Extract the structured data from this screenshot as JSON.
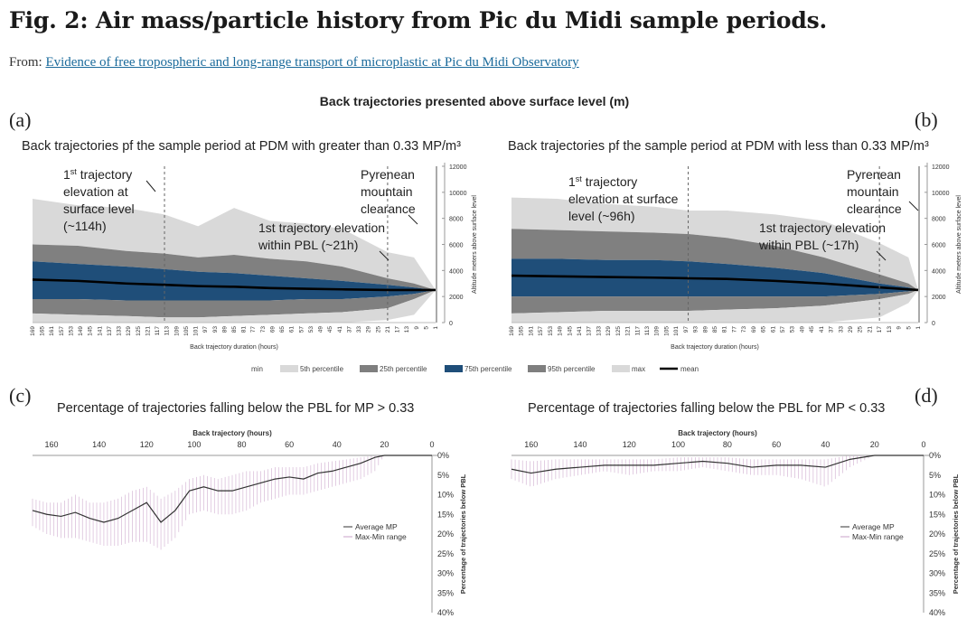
{
  "figure": {
    "title": "Fig. 2: Air mass/particle history from Pic du Midi sample periods.",
    "from_label": "From:",
    "link_text": "Evidence of free tropospheric and long-range transport of microplastic at Pic du Midi Observatory",
    "supertitle": "Back trajectories presented above surface level (m)",
    "panel_labels": [
      "(a)",
      "(b)",
      "(c)",
      "(d)"
    ]
  },
  "legend_top": {
    "items": [
      {
        "label": "min",
        "color": "#ffffff"
      },
      {
        "label": "5th percentile",
        "color": "#d9d9d9"
      },
      {
        "label": "25th percentile",
        "color": "#7f7f7f"
      },
      {
        "label": "75th percentile",
        "color": "#1f4e79"
      },
      {
        "label": "95th percentile",
        "color": "#7f7f7f"
      },
      {
        "label": "max",
        "color": "#d9d9d9"
      },
      {
        "label": "mean",
        "color": "#000000"
      }
    ]
  },
  "chart_data": [
    {
      "panel": "a",
      "type": "area",
      "title": "Back trajectories pf the sample period at PDM with greater than 0.33 MP/m³",
      "xlabel": "Back trajectory duration (hours)",
      "ylabel": "Altitude meters above surface level",
      "ylim": [
        0,
        12000
      ],
      "yticks": [
        0,
        2000,
        4000,
        6000,
        8000,
        10000,
        12000
      ],
      "xticks": [
        "169",
        "165",
        "161",
        "157",
        "153",
        "149",
        "145",
        "141",
        "137",
        "133",
        "129",
        "125",
        "121",
        "117",
        "113",
        "109",
        "105",
        "101",
        "97",
        "93",
        "89",
        "85",
        "81",
        "77",
        "73",
        "69",
        "65",
        "61",
        "57",
        "53",
        "49",
        "45",
        "41",
        "37",
        "33",
        "29",
        "25",
        "21",
        "17",
        "13",
        "9",
        "5",
        "1"
      ],
      "x": [
        169,
        150,
        130,
        114,
        100,
        85,
        70,
        55,
        40,
        21,
        10,
        1
      ],
      "series": [
        {
          "name": "max",
          "values": [
            9500,
            9000,
            8800,
            8300,
            7400,
            8800,
            7800,
            7600,
            7200,
            5400,
            5000,
            2500
          ]
        },
        {
          "name": "95th percentile",
          "values": [
            6000,
            5900,
            5500,
            5300,
            5000,
            5200,
            4900,
            4700,
            4300,
            3400,
            3000,
            2500
          ]
        },
        {
          "name": "75th percentile",
          "values": [
            4700,
            4500,
            4300,
            4100,
            3900,
            3800,
            3600,
            3400,
            3200,
            2900,
            2700,
            2500
          ]
        },
        {
          "name": "mean",
          "values": [
            3300,
            3200,
            3000,
            2900,
            2800,
            2750,
            2650,
            2600,
            2550,
            2500,
            2500,
            2500
          ]
        },
        {
          "name": "25th percentile",
          "values": [
            1800,
            1800,
            1700,
            1700,
            1700,
            1700,
            1700,
            1800,
            1800,
            2000,
            2200,
            2500
          ]
        },
        {
          "name": "5th percentile",
          "values": [
            700,
            600,
            500,
            400,
            400,
            500,
            600,
            700,
            800,
            1100,
            1800,
            2500
          ]
        },
        {
          "name": "min",
          "values": [
            0,
            0,
            0,
            0,
            0,
            0,
            0,
            0,
            0,
            200,
            600,
            2500
          ]
        }
      ],
      "annotations": [
        {
          "sup": "st",
          "lines": [
            "1",
            "trajectory",
            "elevation at",
            "surface level",
            "(~114h)"
          ],
          "x": 114
        },
        {
          "lines": [
            "1st trajectory elevation",
            "within PBL (~21h)"
          ],
          "x": 21
        },
        {
          "lines": [
            "Pyrenean",
            "mountain",
            "clearance"
          ],
          "x": 1
        }
      ]
    },
    {
      "panel": "b",
      "type": "area",
      "title": "Back trajectories pf the sample period at PDM with less than 0.33 MP/m³",
      "xlabel": "Back trajectory duration (hours)",
      "ylabel": "Altitude meters above surface level",
      "ylim": [
        0,
        12000
      ],
      "yticks": [
        0,
        2000,
        4000,
        6000,
        8000,
        10000,
        12000
      ],
      "xticks": [
        "169",
        "165",
        "161",
        "157",
        "153",
        "149",
        "145",
        "141",
        "137",
        "133",
        "129",
        "125",
        "121",
        "117",
        "113",
        "109",
        "105",
        "101",
        "97",
        "93",
        "89",
        "85",
        "81",
        "77",
        "73",
        "69",
        "65",
        "61",
        "57",
        "53",
        "49",
        "45",
        "41",
        "37",
        "33",
        "29",
        "25",
        "21",
        "17",
        "13",
        "9",
        "5",
        "1"
      ],
      "x": [
        169,
        150,
        130,
        110,
        96,
        80,
        60,
        40,
        17,
        5,
        1
      ],
      "series": [
        {
          "name": "max",
          "values": [
            9600,
            9500,
            9100,
            8900,
            8600,
            8600,
            8300,
            7800,
            6100,
            5000,
            2500
          ]
        },
        {
          "name": "95th percentile",
          "values": [
            7200,
            7100,
            7000,
            6900,
            6800,
            6500,
            5900,
            5000,
            3700,
            3000,
            2500
          ]
        },
        {
          "name": "75th percentile",
          "values": [
            4900,
            4900,
            4800,
            4800,
            4700,
            4500,
            4200,
            3800,
            3000,
            2700,
            2500
          ]
        },
        {
          "name": "mean",
          "values": [
            3600,
            3550,
            3500,
            3450,
            3400,
            3350,
            3200,
            3000,
            2700,
            2550,
            2500
          ]
        },
        {
          "name": "25th percentile",
          "values": [
            2000,
            2000,
            2000,
            2000,
            2000,
            2000,
            2000,
            2000,
            2200,
            2400,
            2500
          ]
        },
        {
          "name": "5th percentile",
          "values": [
            700,
            800,
            900,
            900,
            900,
            1000,
            1100,
            1300,
            1800,
            2200,
            2500
          ]
        },
        {
          "name": "min",
          "values": [
            0,
            0,
            0,
            0,
            0,
            0,
            0,
            0,
            400,
            1500,
            2500
          ]
        }
      ],
      "annotations": [
        {
          "lines": [
            "1",
            "trajectory",
            "elevation at surface",
            "level (~96h)"
          ],
          "x": 96
        },
        {
          "lines": [
            "1st trajectory elevation",
            "within PBL (~17h)"
          ],
          "x": 17
        },
        {
          "lines": [
            "Pyrenean",
            "mountain",
            "clearance"
          ],
          "x": 1
        }
      ]
    },
    {
      "panel": "c",
      "type": "line",
      "title": "Percentage of trajectories falling below the PBL for MP > 0.33",
      "xlabel": "Back trajectory (hours)",
      "ylabel": "Percentage of trajectories below PBL",
      "xlim": [
        168,
        0
      ],
      "xticks": [
        160,
        140,
        120,
        100,
        80,
        60,
        40,
        20,
        0
      ],
      "ylim": [
        0,
        40
      ],
      "yticks": [
        "0%",
        "5%",
        "10%",
        "15%",
        "20%",
        "25%",
        "30%",
        "35%",
        "40%"
      ],
      "legend": [
        "Average MP",
        "Max-Min range"
      ],
      "x": [
        168,
        162,
        156,
        150,
        144,
        138,
        132,
        126,
        120,
        114,
        108,
        102,
        96,
        90,
        84,
        78,
        72,
        66,
        60,
        54,
        48,
        42,
        36,
        30,
        24,
        20,
        0
      ],
      "series": [
        {
          "name": "Average MP",
          "values": [
            14,
            15,
            15.5,
            14.5,
            16,
            17,
            16,
            14,
            12,
            17,
            14,
            9,
            8,
            9,
            9,
            8,
            7,
            6,
            5.5,
            6,
            4.5,
            4,
            3,
            2,
            0.5,
            0,
            0
          ]
        },
        {
          "name": "Max-Min range upper",
          "values": [
            11,
            12,
            12,
            10,
            12,
            12,
            11,
            9,
            8,
            11,
            9,
            6,
            5,
            6,
            5,
            4,
            4,
            3,
            3,
            3,
            2,
            1.5,
            1,
            0.5,
            0,
            0,
            0
          ]
        },
        {
          "name": "Max-Min range lower",
          "values": [
            18,
            20,
            21,
            21,
            22,
            23,
            23,
            22,
            22,
            24,
            21,
            15,
            14,
            15,
            15,
            14,
            12,
            11,
            10,
            10,
            9,
            8,
            7,
            6,
            4,
            0,
            0
          ]
        }
      ]
    },
    {
      "panel": "d",
      "type": "line",
      "title": "Percentage of trajectories falling below the PBL for MP < 0.33",
      "xlabel": "Back trajectory (hours)",
      "ylabel": "Percentage of trajectories below PBL",
      "xlim": [
        168,
        0
      ],
      "xticks": [
        160,
        140,
        120,
        100,
        80,
        60,
        40,
        20,
        0
      ],
      "ylim": [
        0,
        40
      ],
      "yticks": [
        "0%",
        "5%",
        "10%",
        "15%",
        "20%",
        "25%",
        "30%",
        "35%",
        "40%"
      ],
      "legend": [
        "Average MP",
        "Max-Min range"
      ],
      "x": [
        168,
        160,
        150,
        140,
        130,
        120,
        110,
        100,
        90,
        80,
        70,
        60,
        50,
        40,
        30,
        20,
        0
      ],
      "series": [
        {
          "name": "Average MP",
          "values": [
            3.5,
            4.5,
            3.5,
            3,
            2.5,
            2.5,
            2.5,
            2,
            1.5,
            2,
            3,
            2.5,
            2.5,
            3,
            1,
            0,
            0
          ]
        },
        {
          "name": "Max-Min range upper",
          "values": [
            1,
            1.5,
            1,
            1,
            1,
            1,
            1,
            0.5,
            0.5,
            0.5,
            1,
            1,
            1,
            1,
            0,
            0,
            0
          ]
        },
        {
          "name": "Max-Min range lower",
          "values": [
            6,
            8,
            6,
            5,
            4,
            5,
            4,
            4,
            3,
            4,
            5,
            5,
            6,
            8,
            3,
            0,
            0
          ]
        }
      ]
    }
  ]
}
